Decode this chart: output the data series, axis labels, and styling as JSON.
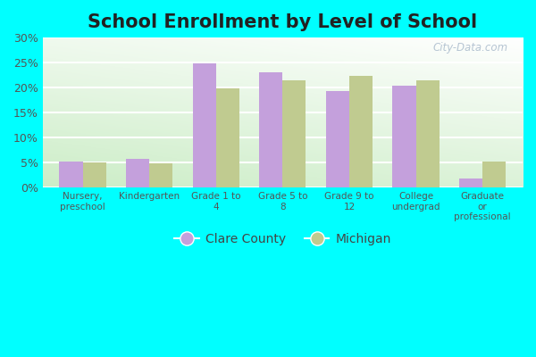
{
  "title": "School Enrollment by Level of School",
  "categories": [
    "Nursery,\npreschool",
    "Kindergarten",
    "Grade 1 to\n4",
    "Grade 5 to\n8",
    "Grade 9 to\n12",
    "College\nundergrad",
    "Graduate\nor\nprofessional"
  ],
  "clare_county": [
    5.2,
    5.8,
    24.9,
    23.0,
    19.3,
    20.3,
    1.8
  ],
  "michigan": [
    5.1,
    4.8,
    19.8,
    21.4,
    22.3,
    21.4,
    5.3
  ],
  "clare_color": "#C4A0DC",
  "michigan_color": "#C0CB90",
  "background_outer": "#00FFFF",
  "bar_width": 0.35,
  "ylim": [
    0,
    30
  ],
  "yticks": [
    0,
    5,
    10,
    15,
    20,
    25,
    30
  ],
  "ytick_labels": [
    "0%",
    "5%",
    "10%",
    "15%",
    "20%",
    "25%",
    "30%"
  ],
  "title_fontsize": 15,
  "legend_labels": [
    "Clare County",
    "Michigan"
  ],
  "watermark": "City-Data.com"
}
